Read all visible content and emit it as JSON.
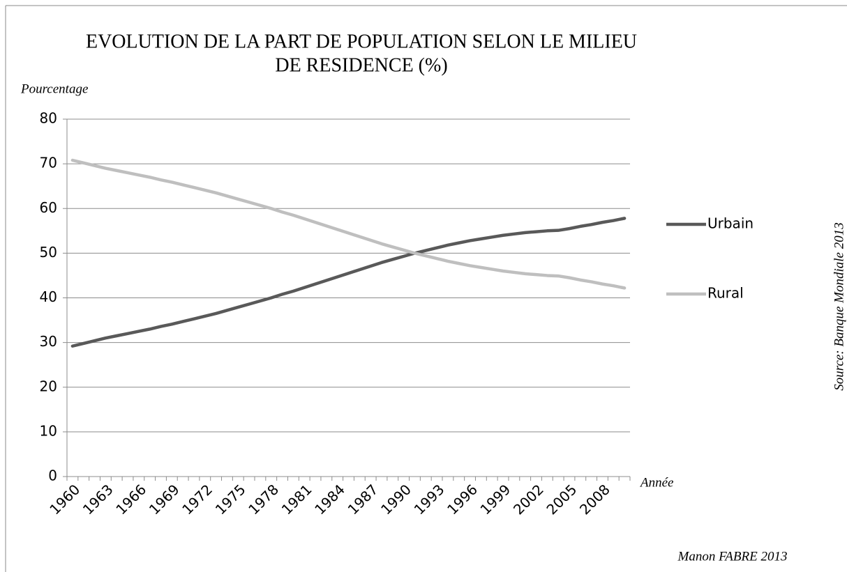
{
  "chart_data": {
    "type": "line",
    "title": [
      "EVOLUTION DE LA PART DE POPULATION SELON LE MILIEU",
      "DE RESIDENCE  (%)"
    ],
    "y_label": "Pourcentage",
    "x_label": "Année",
    "source": "Source: Banque Mondiale 2013",
    "author": "Manon FABRE 2013",
    "categories": [
      "1960",
      null,
      null,
      "1963",
      null,
      null,
      "1966",
      null,
      null,
      "1969",
      null,
      null,
      "1972",
      null,
      null,
      "1975",
      null,
      null,
      "1978",
      null,
      null,
      "1981",
      null,
      null,
      "1984",
      null,
      null,
      "1987",
      null,
      null,
      "1990",
      null,
      null,
      "1993",
      null,
      null,
      "1996",
      null,
      null,
      "1999",
      null,
      null,
      "2002",
      null,
      null,
      "2005",
      null,
      null,
      "2008",
      null,
      null
    ],
    "series": [
      {
        "name": "Urbain",
        "color": "#595959",
        "values": [
          29.2,
          29.8,
          30.4,
          31.0,
          31.5,
          32.0,
          32.5,
          33.0,
          33.6,
          34.1,
          34.7,
          35.3,
          35.9,
          36.5,
          37.2,
          37.9,
          38.6,
          39.3,
          40.0,
          40.8,
          41.5,
          42.3,
          43.1,
          43.9,
          44.7,
          45.5,
          46.3,
          47.1,
          47.9,
          48.6,
          49.3,
          50.0,
          50.6,
          51.2,
          51.8,
          52.3,
          52.8,
          53.2,
          53.6,
          54.0,
          54.3,
          54.6,
          54.8,
          55.0,
          55.1,
          55.5,
          56.0,
          56.4,
          56.9,
          57.3,
          57.8
        ]
      },
      {
        "name": "Rural",
        "color": "#bfbfbf",
        "values": [
          70.8,
          70.2,
          69.6,
          69.0,
          68.5,
          68.0,
          67.5,
          67.0,
          66.4,
          65.9,
          65.3,
          64.7,
          64.1,
          63.5,
          62.8,
          62.1,
          61.4,
          60.7,
          60.0,
          59.2,
          58.5,
          57.7,
          56.9,
          56.1,
          55.3,
          54.5,
          53.7,
          52.9,
          52.1,
          51.4,
          50.7,
          50.0,
          49.4,
          48.8,
          48.2,
          47.7,
          47.2,
          46.8,
          46.4,
          46.0,
          45.7,
          45.4,
          45.2,
          45.0,
          44.9,
          44.5,
          44.0,
          43.6,
          43.1,
          42.7,
          42.2
        ]
      }
    ],
    "ylim": [
      0,
      80
    ],
    "yticks": [
      0,
      10,
      20,
      30,
      40,
      50,
      60,
      70,
      80
    ],
    "grid": true,
    "legend": "right"
  }
}
